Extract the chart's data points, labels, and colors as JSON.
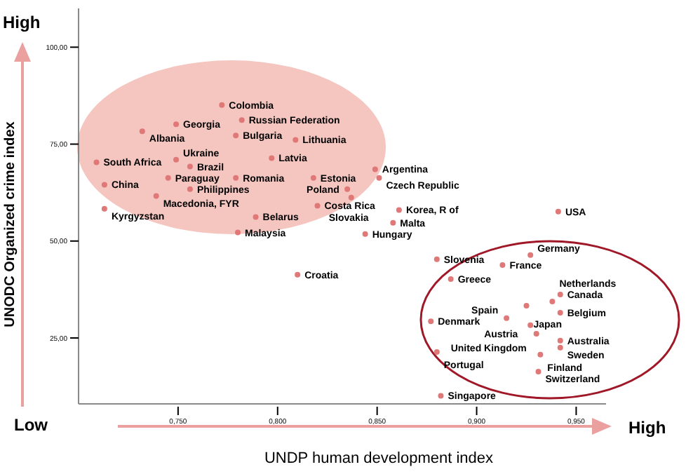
{
  "chart_data": {
    "type": "scatter",
    "xlabel": "UNDP human development index",
    "ylabel": "UNODC Organized crime index",
    "annotations": [
      "High",
      "Low",
      "High"
    ],
    "xlim": [
      0.7,
      0.965
    ],
    "ylim": [
      8,
      110
    ],
    "xticks": [
      {
        "value": 0.75,
        "label": "0,750"
      },
      {
        "value": 0.8,
        "label": "0,800"
      },
      {
        "value": 0.85,
        "label": "0,850"
      },
      {
        "value": 0.9,
        "label": "0,900"
      },
      {
        "value": 0.95,
        "label": "0,950"
      }
    ],
    "yticks": [
      {
        "value": 25,
        "label": "25,00"
      },
      {
        "value": 50,
        "label": "50,00"
      },
      {
        "value": 75,
        "label": "75,00"
      },
      {
        "value": 100,
        "label": "100,00"
      }
    ],
    "marker": "circle",
    "series": [
      {
        "color": "#e07878",
        "x": [
          0.772,
          0.749,
          0.732,
          0.782,
          0.779,
          0.809,
          0.709,
          0.749,
          0.756,
          0.797,
          0.713,
          0.745,
          0.779,
          0.818,
          0.756,
          0.739,
          0.713,
          0.82,
          0.789,
          0.78,
          0.849,
          0.851,
          0.835,
          0.837,
          0.861,
          0.858,
          0.844,
          0.941,
          0.81,
          0.88,
          0.913,
          0.927,
          0.887,
          0.942,
          0.925,
          0.938,
          0.942,
          0.877,
          0.915,
          0.927,
          0.93,
          0.942,
          0.942,
          0.932,
          0.88,
          0.931,
          0.882
        ],
        "values": [
          85.1,
          80.1,
          78.3,
          81.2,
          77.2,
          76.1,
          70.3,
          71.0,
          69.2,
          71.4,
          64.5,
          66.3,
          66.3,
          66.3,
          63.4,
          61.6,
          58.3,
          59.1,
          56.2,
          52.2,
          68.5,
          66.3,
          63.4,
          61.2,
          58.0,
          54.7,
          51.8,
          57.6,
          41.3,
          45.3,
          43.8,
          46.4,
          40.2,
          36.2,
          33.3,
          34.4,
          31.5,
          29.3,
          30.1,
          28.3,
          26.1,
          24.3,
          22.5,
          20.7,
          21.4,
          16.3,
          10.1
        ],
        "value_labels": [
          "Colombia",
          "Georgia",
          "Albania",
          "Russian Federation",
          "Bulgaria",
          "Lithuania",
          "South Africa",
          "Ukraine",
          "Brazil",
          "Latvia",
          "China",
          "Paraguay",
          "Romania",
          "Estonia",
          "Philippines",
          "Macedonia, FYR",
          "Kyrgyzstan",
          "Costa Rica",
          "Belarus",
          "Malaysia",
          "Argentina",
          "Czech Republic",
          "Poland",
          "Slovakia",
          "Korea, R of",
          "Malta",
          "Hungary",
          "USA",
          "Croatia",
          "Slovenia",
          "France",
          "Germany",
          "Greece",
          "Canada",
          "Japan",
          "Netherlands",
          "Belgium",
          "Denmark",
          "Spain",
          "Austria",
          "United Kingdom",
          "Australia",
          "Sweden",
          "Finland",
          "Portugal",
          "Switzerland",
          "Singapore"
        ]
      }
    ]
  }
}
